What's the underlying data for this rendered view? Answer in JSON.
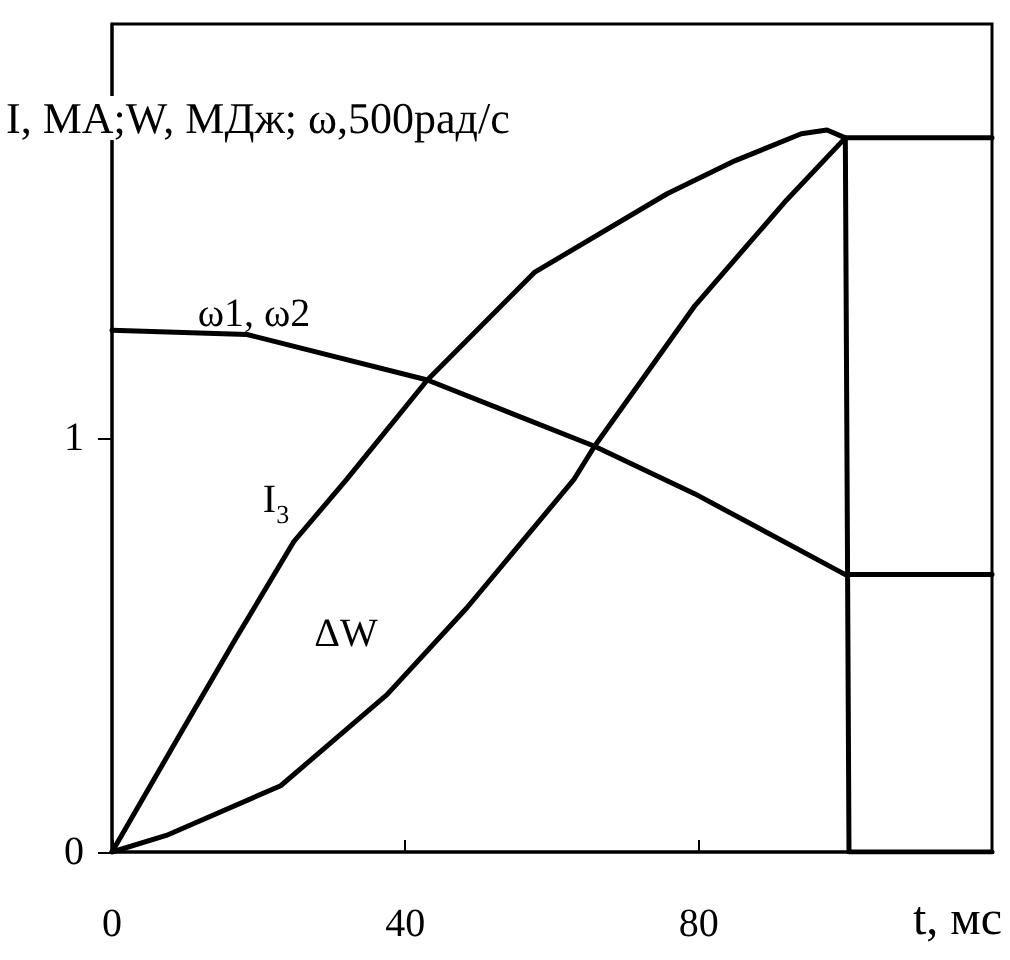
{
  "chart_data": {
    "type": "line",
    "xlabel": "t, мс",
    "ylabel": "I, МА;W, МДж; ω,500рад/с",
    "xlim": [
      0,
      120
    ],
    "ylim": [
      0,
      2
    ],
    "xticks": [
      0,
      40,
      80
    ],
    "yticks": [
      0,
      1
    ],
    "grid": false,
    "marker": "none",
    "line_style": "solid",
    "series": [
      {
        "color": "#000000",
        "x": [
          0,
          9.3,
          16.7,
          24.8,
          32,
          43,
          57.6,
          75.7,
          85,
          94,
          97.5,
          100,
          100.5,
          120
        ],
        "values": [
          0,
          0.285,
          0.51,
          0.75,
          0.9,
          1.14,
          1.4,
          1.59,
          1.67,
          1.735,
          1.744,
          1.725,
          0,
          0
        ]
      },
      {
        "color": "#000000",
        "x": [
          0,
          7.4,
          23,
          37.5,
          48.4,
          63,
          65.8,
          79.5,
          92,
          100,
          120
        ],
        "values": [
          0,
          0.04,
          0.16,
          0.38,
          0.59,
          0.9,
          0.98,
          1.32,
          1.575,
          1.725,
          1.725
        ]
      },
      {
        "color": "#000000",
        "x": [
          0,
          18.4,
          43,
          65.8,
          79.5,
          100,
          120
        ],
        "values": [
          1.26,
          1.25,
          1.14,
          0.98,
          0.865,
          0.67,
          0.67
        ]
      }
    ],
    "annotations": [
      "ω1, ω2",
      "I$_{3}$",
      "ΔW"
    ]
  }
}
